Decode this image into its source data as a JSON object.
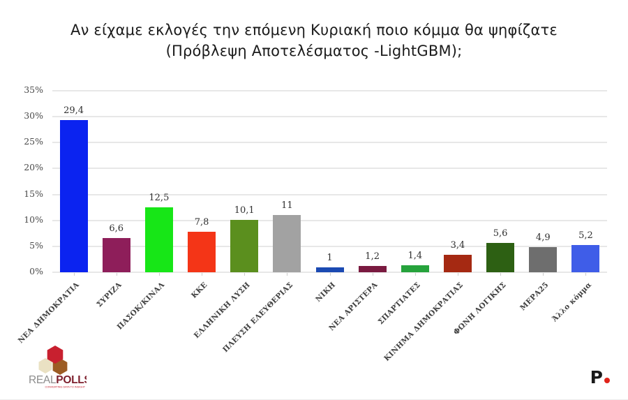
{
  "title": {
    "line1": "Αν είχαμε εκλογές την επόμενη Κυριακή ποιο κόμμα θα ψηφίζατε",
    "line2": "(Πρόβλεψη Αποτελέσματος -LightGBM);"
  },
  "chart_data": {
    "type": "bar",
    "categories": [
      "ΝΕΑ ΔΗΜΟΚΡΑΤΙΑ",
      "ΣΥΡΙΖΑ",
      "ΠΑΣΟΚ/ΚΙΝΑΛ",
      "ΚΚΕ",
      "ΕΛΛΗΝΙΚΗ ΛΥΣΗ",
      "ΠΛΕΥΣΗ ΕΛΕΥΘΕΡΙΑΣ",
      "ΝΙΚΗ",
      "ΝΕΑ ΑΡΙΣΤΕΡΑ",
      "ΣΠΑΡΤΙΑΤΕΣ",
      "ΚΙΝΗΜΑ ΔΗΜΟΚΡΑΤΙΑΣ",
      "ΦΩΝΗ ΛΟΓΙΚΗΣ",
      "ΜΕΡΑ25",
      "Άλλο κόμμα"
    ],
    "values": [
      29.4,
      6.6,
      12.5,
      7.8,
      10.1,
      11,
      1,
      1.2,
      1.4,
      3.4,
      5.6,
      4.9,
      5.2
    ],
    "value_labels": [
      "29,4",
      "6,6",
      "12,5",
      "7,8",
      "10,1",
      "11",
      "1",
      "1,2",
      "1,4",
      "3,4",
      "5,6",
      "4,9",
      "5,2"
    ],
    "bar_colors": [
      "#0b23f0",
      "#8e1e5a",
      "#17e617",
      "#f43517",
      "#5b8f1e",
      "#a2a2a2",
      "#1b4ab2",
      "#7a1a40",
      "#26a33c",
      "#a52912",
      "#2d6013",
      "#6e6e6e",
      "#3f5de8"
    ],
    "y_ticks": [
      "0%",
      "5%",
      "10%",
      "15%",
      "20%",
      "25%",
      "30%",
      "35%"
    ],
    "ylim": [
      0,
      35
    ],
    "xlabel": "",
    "ylabel": "",
    "grid": true,
    "legend": "none"
  },
  "footer": {
    "left_logo": {
      "brand_real": "REAL",
      "brand_polls": "POLLS",
      "tagline": "CONVERTING DATA TO INSIGHT"
    },
    "right_logo": {
      "letter": "P",
      "dot": "."
    }
  },
  "colors": {
    "background": "#ffffff",
    "grid": "#e7e7e7",
    "axis_text": "#4a4a4a",
    "value_text": "#2f2f2f",
    "title_text": "#1b1b1b",
    "brand_red": "#c8202f",
    "brand_maroon": "#7d1f2d",
    "brand_gray": "#8d8d8d",
    "brand_brown": "#9c5c24",
    "brand_cream": "#eae1c3",
    "publisher_black": "#1a1a1a",
    "publisher_red": "#e0231a"
  }
}
